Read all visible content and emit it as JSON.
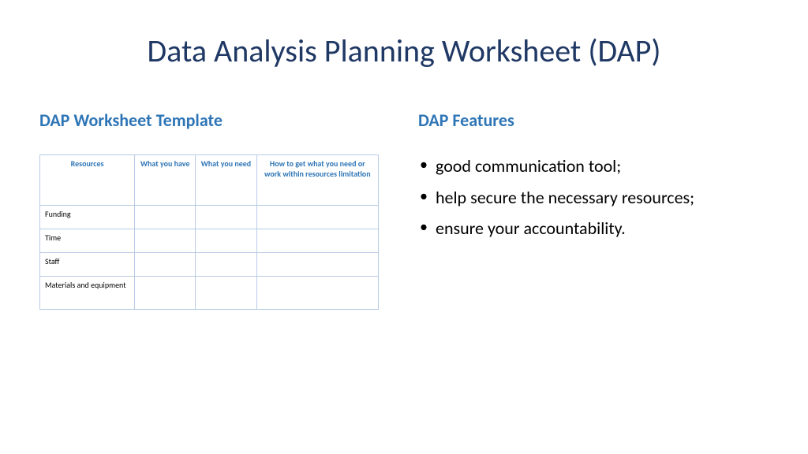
{
  "colors": {
    "title": "#1f3864",
    "subhead": "#2e75b6",
    "tableHeader": "#2e75b6",
    "tableBorder": "#b8cbe4",
    "bodyText": "#000000",
    "background": "#ffffff"
  },
  "title": "Data Analysis Planning Worksheet (DAP)",
  "left": {
    "heading": "DAP Worksheet Template",
    "table": {
      "headers": [
        "Resources",
        "What you have",
        "What you need",
        "How to get what you need or work within resources limitation"
      ],
      "rows": [
        {
          "label": "Funding"
        },
        {
          "label": "Time"
        },
        {
          "label": "Staff"
        },
        {
          "label": "Materials and equipment"
        }
      ]
    }
  },
  "right": {
    "heading": "DAP Features",
    "bullets": [
      "good communication tool;",
      "help secure the necessary resources;",
      " ensure your accountability."
    ]
  }
}
